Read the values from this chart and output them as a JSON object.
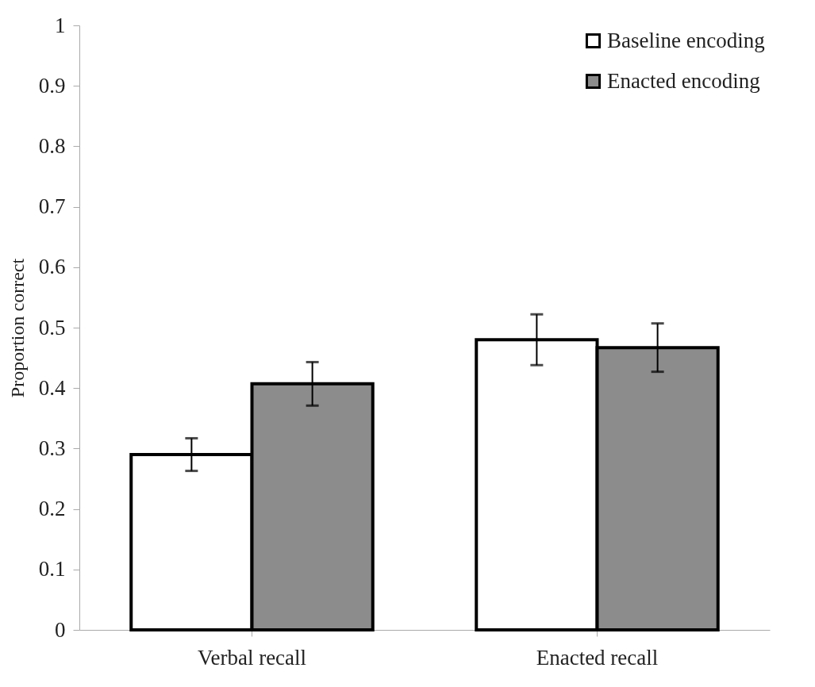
{
  "chart_data": {
    "type": "bar",
    "ylabel": "Proportion correct",
    "categories": [
      "Verbal recall",
      "Enacted recall"
    ],
    "series": [
      {
        "name": "Baseline encoding",
        "color": "#ffffff",
        "values": [
          0.29,
          0.48
        ],
        "errors": [
          0.027,
          0.042
        ]
      },
      {
        "name": "Enacted encoding",
        "color": "#8c8c8c",
        "values": [
          0.407,
          0.467
        ],
        "errors": [
          0.036,
          0.04
        ]
      }
    ],
    "ylim": [
      0,
      1
    ],
    "yticks": [
      0,
      0.1,
      0.2,
      0.3,
      0.4,
      0.5,
      0.6,
      0.7,
      0.8,
      0.9,
      1
    ],
    "grid": false,
    "legend": "top right"
  }
}
